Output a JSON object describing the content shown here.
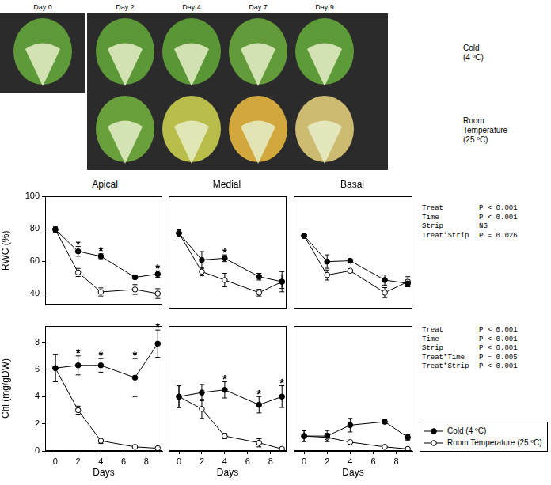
{
  "photo_panel": {
    "columns": [
      "Day 0",
      "Day 2",
      "Day 4",
      "Day 7",
      "Day 9"
    ],
    "rows": [
      [
        "Cold",
        "(4 ºC)"
      ],
      [
        "Room",
        "Temperature",
        "(25 ºC)"
      ]
    ]
  },
  "statistics": [
    [
      [
        "Treat",
        "P < 0.001"
      ],
      [
        "Time",
        "P < 0.001"
      ],
      [
        "Strip",
        "NS"
      ],
      [
        "Treat*Strip",
        "P = 0.026"
      ]
    ],
    [
      [
        "Treat",
        "P < 0.001"
      ],
      [
        "Time",
        "P < 0.001"
      ],
      [
        "Strip",
        "P < 0.001"
      ],
      [
        "Treat*Time",
        "P = 0.005"
      ],
      [
        "Treat*Strip",
        "P < 0.001"
      ]
    ]
  ],
  "chart_data": [
    {
      "type": "line",
      "title": "Apical",
      "y_label": "RWC (%)",
      "x": [
        0,
        2,
        4,
        7,
        9
      ],
      "xlim": [
        -0.9,
        9.4
      ],
      "xticks": [
        0,
        2,
        4,
        6,
        8
      ],
      "ylim": [
        33,
        100
      ],
      "yticks": [
        40,
        60,
        80,
        100
      ],
      "grid": false,
      "tick_labels": "y",
      "series": [
        {
          "name": "Cold (4 ºC)",
          "color": "#000000",
          "marker": "filled_circle",
          "values": [
            79.5,
            66,
            63,
            50,
            52
          ],
          "errors": [
            1.5,
            3,
            1.5,
            1,
            2
          ]
        },
        {
          "name": "Room Temperature (25 ºC)",
          "color": "#000000",
          "marker": "open_circle",
          "values": [
            79.5,
            53,
            41,
            42.5,
            40
          ],
          "errors": [
            1.5,
            2.5,
            2.5,
            3,
            3
          ]
        }
      ],
      "annotations": [
        {
          "x": 2,
          "y": 72,
          "text": "*"
        },
        {
          "x": 4,
          "y": 68,
          "text": "*"
        },
        {
          "x": 9,
          "y": 57,
          "text": "*"
        }
      ]
    },
    {
      "type": "line",
      "title": "Medial",
      "x": [
        0,
        2,
        4,
        7,
        9
      ],
      "xlim": [
        -0.9,
        9.4
      ],
      "xticks": [
        0,
        2,
        4,
        6,
        8
      ],
      "ylim": [
        33,
        100
      ],
      "yticks": [
        40,
        60,
        80,
        100
      ],
      "grid": false,
      "tick_labels": false,
      "series": [
        {
          "name": "Cold (4 ºC)",
          "color": "#000000",
          "marker": "filled_circle",
          "values": [
            78,
            62,
            63,
            52,
            49
          ],
          "errors": [
            2,
            5,
            2,
            2,
            4
          ]
        },
        {
          "name": "Room Temperature (25 ºC)",
          "color": "#000000",
          "marker": "open_circle",
          "values": [
            78,
            55,
            50,
            42.5,
            49
          ],
          "errors": [
            2,
            2.5,
            4,
            2,
            6
          ]
        }
      ],
      "annotations": [
        {
          "x": 4,
          "y": 68,
          "text": "*"
        }
      ]
    },
    {
      "type": "line",
      "title": "Basal",
      "x": [
        0,
        2,
        4,
        7,
        9
      ],
      "xlim": [
        -0.9,
        9.4
      ],
      "xticks": [
        0,
        2,
        4,
        6,
        8
      ],
      "ylim": [
        33,
        100
      ],
      "yticks": [
        40,
        60,
        80,
        100
      ],
      "grid": false,
      "tick_labels": false,
      "series": [
        {
          "name": "Cold (4 ºC)",
          "color": "#000000",
          "marker": "filled_circle",
          "values": [
            76.5,
            61,
            61.5,
            50,
            48
          ],
          "errors": [
            1.5,
            4,
            1,
            3,
            2
          ]
        },
        {
          "name": "Room Temperature (25 ºC)",
          "color": "#000000",
          "marker": "open_circle",
          "values": [
            76.5,
            53,
            55.5,
            42.5,
            49
          ],
          "errors": [
            1.5,
            3,
            1,
            3,
            3
          ]
        }
      ]
    },
    {
      "type": "line",
      "y_label": "Chl (mg/gDW)",
      "x_label": "Days",
      "x": [
        0,
        2,
        4,
        7,
        9
      ],
      "xlim": [
        -0.9,
        9.4
      ],
      "xticks": [
        0,
        2,
        4,
        6,
        8
      ],
      "ylim": [
        0,
        9.2
      ],
      "yticks": [
        0,
        2,
        4,
        6,
        8
      ],
      "grid": false,
      "tick_labels": true,
      "series": [
        {
          "name": "Cold (4 ºC)",
          "color": "#000000",
          "marker": "filled_circle",
          "values": [
            6.1,
            6.3,
            6.3,
            5.4,
            7.9
          ],
          "errors": [
            1,
            0.7,
            0.5,
            1.4,
            1
          ]
        },
        {
          "name": "Room Temperature (25 ºC)",
          "color": "#000000",
          "marker": "open_circle",
          "values": [
            6.1,
            3.0,
            0.75,
            0.3,
            0.2
          ],
          "errors": [
            1,
            0.3,
            0.2,
            0.05,
            0.05
          ]
        }
      ],
      "annotations": [
        {
          "x": 2,
          "y": 7.4,
          "text": "*"
        },
        {
          "x": 4,
          "y": 7.2,
          "text": "*"
        },
        {
          "x": 7,
          "y": 7.2,
          "text": "*"
        },
        {
          "x": 9,
          "y": 9.3,
          "text": "*"
        }
      ]
    },
    {
      "type": "line",
      "x_label": "Days",
      "x": [
        0,
        2,
        4,
        7,
        9
      ],
      "xlim": [
        -0.9,
        9.4
      ],
      "xticks": [
        0,
        2,
        4,
        6,
        8
      ],
      "ylim": [
        0,
        9.2
      ],
      "yticks": [
        0,
        2,
        4,
        6,
        8
      ],
      "grid": false,
      "tick_labels": "x",
      "series": [
        {
          "name": "Cold (4 ºC)",
          "color": "#000000",
          "marker": "filled_circle",
          "values": [
            4.0,
            4.3,
            4.5,
            3.4,
            4.0
          ],
          "errors": [
            0.8,
            0.6,
            0.6,
            0.6,
            0.8
          ]
        },
        {
          "name": "Room Temperature (25 ºC)",
          "color": "#000000",
          "marker": "open_circle",
          "values": [
            4.0,
            3.1,
            1.1,
            0.6,
            0.15
          ],
          "errors": [
            0.8,
            0.7,
            0.2,
            0.3,
            0.05
          ]
        }
      ],
      "annotations": [
        {
          "x": 4,
          "y": 5.5,
          "text": "*"
        },
        {
          "x": 7,
          "y": 4.4,
          "text": "*"
        },
        {
          "x": 9,
          "y": 5.2,
          "text": "*"
        }
      ]
    },
    {
      "type": "line",
      "x_label": "Days",
      "x": [
        0,
        2,
        4,
        7,
        9
      ],
      "xlim": [
        -0.9,
        9.4
      ],
      "xticks": [
        0,
        2,
        4,
        6,
        8
      ],
      "ylim": [
        0,
        9.2
      ],
      "yticks": [
        0,
        2,
        4,
        6,
        8
      ],
      "grid": false,
      "tick_labels": "x",
      "legend": "right",
      "series": [
        {
          "name": "Cold (4 ºC)",
          "color": "#000000",
          "marker": "filled_circle",
          "values": [
            1.1,
            1.1,
            1.9,
            2.15,
            1.0
          ],
          "errors": [
            0.4,
            0.4,
            0.5,
            0.15,
            0.2
          ]
        },
        {
          "name": "Room Temperature (25 ºC)",
          "color": "#000000",
          "marker": "open_circle",
          "values": [
            1.1,
            1.0,
            0.65,
            0.3,
            0.15
          ],
          "errors": [
            0.4,
            0.3,
            0.1,
            0.05,
            0.05
          ]
        }
      ]
    }
  ]
}
